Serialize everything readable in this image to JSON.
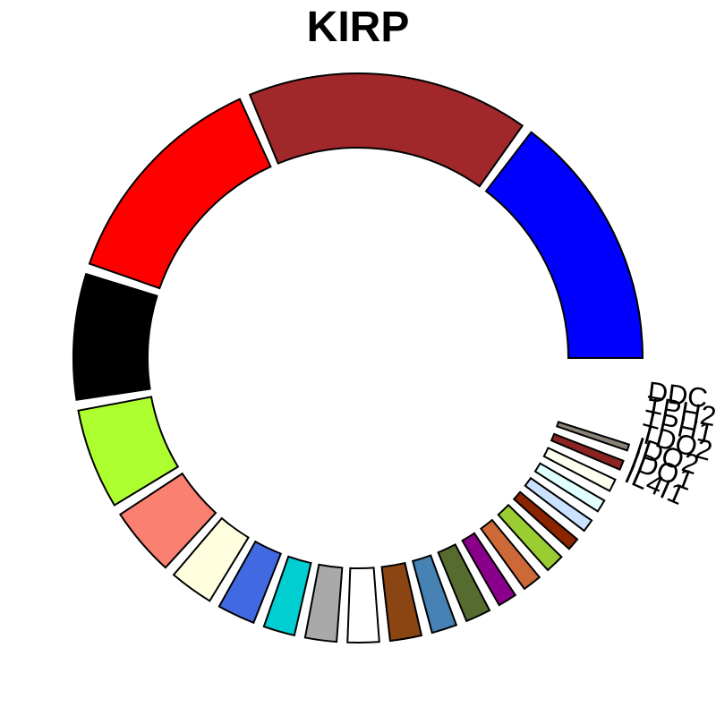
{
  "chart_data": {
    "type": "pie",
    "variant": "donut",
    "title": "KIRP",
    "legend": "none",
    "labeled_categories": [
      "DDC",
      "TPH2",
      "TPH1",
      "TDO2",
      "IDO2",
      "IDO1",
      "IL4I1"
    ],
    "slices": [
      {
        "label": "",
        "value": 41,
        "color": "#0000ff"
      },
      {
        "label": "",
        "value": 45,
        "color": "#a0282a"
      },
      {
        "label": "",
        "value": 36,
        "color": "#ff0000"
      },
      {
        "label": "",
        "value": 20,
        "color": "#000000"
      },
      {
        "label": "",
        "value": 16,
        "color": "#adff2f"
      },
      {
        "label": "",
        "value": 11,
        "color": "#fa8072"
      },
      {
        "label": "",
        "value": 7,
        "color": "#ffffe0"
      },
      {
        "label": "",
        "value": 6,
        "color": "#4169e1"
      },
      {
        "label": "",
        "value": 5,
        "color": "#00ced1"
      },
      {
        "label": "",
        "value": 5,
        "color": "#a9a9a9"
      },
      {
        "label": "",
        "value": 5,
        "color": "#ffffff"
      },
      {
        "label": "",
        "value": 5,
        "color": "#8b4513"
      },
      {
        "label": "",
        "value": 4,
        "color": "#4682b4"
      },
      {
        "label": "",
        "value": 4,
        "color": "#556b2f"
      },
      {
        "label": "",
        "value": 3,
        "color": "#8b008b"
      },
      {
        "label": "",
        "value": 3,
        "color": "#cd6839"
      },
      {
        "label": "",
        "value": 3,
        "color": "#9acd32"
      },
      {
        "label": "",
        "value": 2,
        "color": "#8b2500"
      },
      {
        "label": "",
        "value": 2,
        "color": "#cae1ff"
      },
      {
        "label": "",
        "value": 2,
        "color": "#e0ffff"
      },
      {
        "label": "",
        "value": 2,
        "color": "#fffff0"
      },
      {
        "label": "",
        "value": 1.5,
        "color": "#8b2323"
      },
      {
        "label": "",
        "value": 1,
        "color": "#8b8378"
      },
      {
        "label": "IL4I1",
        "value": 0.01,
        "color": "#ffffff"
      },
      {
        "label": "IDO1",
        "value": 0.01,
        "color": "#ffffff"
      },
      {
        "label": "IDO2",
        "value": 0.01,
        "color": "#ffffff"
      },
      {
        "label": "TDO2",
        "value": 0.01,
        "color": "#ffffff"
      },
      {
        "label": "TPH1",
        "value": 0.01,
        "color": "#ffffff"
      },
      {
        "label": "TPH2",
        "value": 0.01,
        "color": "#ffffff"
      },
      {
        "label": "DDC",
        "value": 0.01,
        "color": "#ffffff"
      }
    ]
  }
}
